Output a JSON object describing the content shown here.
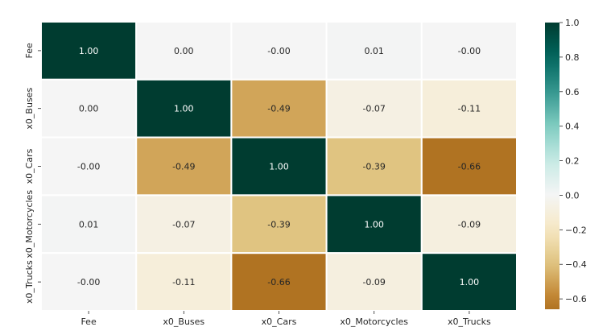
{
  "chart_data": {
    "type": "heatmap",
    "rows": [
      "Fee",
      "x0_Buses",
      "x0_Cars",
      "x0_Motorcycles",
      "x0_Trucks"
    ],
    "columns": [
      "Fee",
      "x0_Buses",
      "x0_Cars",
      "x0_Motorcycles",
      "x0_Trucks"
    ],
    "values": [
      [
        1.0,
        0.0,
        -0.0,
        0.01,
        -0.0
      ],
      [
        0.0,
        1.0,
        -0.49,
        -0.07,
        -0.11
      ],
      [
        -0.0,
        -0.49,
        1.0,
        -0.39,
        -0.66
      ],
      [
        0.01,
        -0.07,
        -0.39,
        1.0,
        -0.09
      ],
      [
        -0.0,
        -0.11,
        -0.66,
        -0.09,
        1.0
      ]
    ],
    "labels": [
      [
        "1.00",
        "0.00",
        "-0.00",
        "0.01",
        "-0.00"
      ],
      [
        "0.00",
        "1.00",
        "-0.49",
        "-0.07",
        "-0.11"
      ],
      [
        "-0.00",
        "-0.49",
        "1.00",
        "-0.39",
        "-0.66"
      ],
      [
        "0.01",
        "-0.07",
        "-0.39",
        "1.00",
        "-0.09"
      ],
      [
        "-0.00",
        "-0.11",
        "-0.66",
        "-0.09",
        "1.00"
      ]
    ],
    "colormap": "BrBG",
    "vmin": -0.66,
    "vmax": 1.0,
    "colorbar_ticks": [
      1.0,
      0.8,
      0.6,
      0.4,
      0.2,
      0.0,
      -0.2,
      -0.4,
      -0.6
    ],
    "colorbar_tick_labels": [
      "1.0",
      "0.8",
      "0.6",
      "0.4",
      "0.2",
      "0.0",
      "−0.2",
      "−0.4",
      "−0.6"
    ],
    "colorbar_placement": "right",
    "grid": "white cell borders"
  }
}
